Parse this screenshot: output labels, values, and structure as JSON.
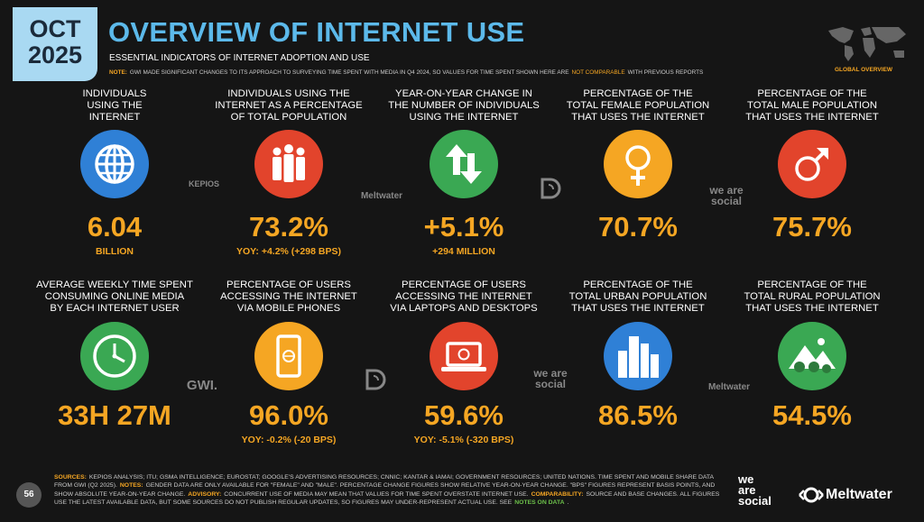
{
  "header": {
    "badge": [
      "OCT",
      "2025"
    ],
    "title": "OVERVIEW OF INTERNET USE",
    "subtitle": "ESSENTIAL INDICATORS OF INTERNET ADOPTION AND USE",
    "note": [
      "NOTE:",
      "GWI MADE SIGNIFICANT CHANGES TO ITS APPROACH TO SURVEYING TIME SPENT WITH MEDIA IN Q4 2024, SO VALUES FOR TIME SPENT SHOWN HERE ARE",
      "NOT COMPARABLE",
      "WITH PREVIOUS REPORTS"
    ],
    "map_label": "GLOBAL OVERVIEW"
  },
  "tiles": [
    {
      "label": [
        "INDIVIDUALS",
        "USING THE",
        "INTERNET"
      ],
      "value": "6.04",
      "detail": "BILLION",
      "color": "#2f80d6"
    },
    {
      "label": [
        "INDIVIDUALS USING THE",
        "INTERNET AS A PERCENTAGE",
        "OF TOTAL POPULATION"
      ],
      "value": "73.2%",
      "detail": "YOY: +4.2% (+298 BPS)",
      "color": "#e2442c"
    },
    {
      "label": [
        "YEAR-ON-YEAR CHANGE IN",
        "THE NUMBER OF INDIVIDUALS",
        "USING THE INTERNET"
      ],
      "value": "+5.1%",
      "detail": "+294 MILLION",
      "color": "#3aa853"
    },
    {
      "label": [
        "PERCENTAGE OF THE",
        "TOTAL FEMALE POPULATION",
        "THAT USES THE INTERNET"
      ],
      "value": "70.7%",
      "color": "#f5a623"
    },
    {
      "label": [
        "PERCENTAGE OF THE",
        "TOTAL MALE POPULATION",
        "THAT USES THE INTERNET"
      ],
      "value": "75.7%",
      "color": "#e2442c"
    },
    {
      "label": [
        "AVERAGE WEEKLY TIME SPENT",
        "CONSUMING ONLINE MEDIA",
        "BY EACH INTERNET USER"
      ],
      "value": "33H 27M",
      "color": "#3aa853"
    },
    {
      "label": [
        "PERCENTAGE OF USERS",
        "ACCESSING THE INTERNET",
        "VIA MOBILE PHONES"
      ],
      "value": "96.0%",
      "detail": "YOY: -0.2% (-20 BPS)",
      "color": "#f5a623"
    },
    {
      "label": [
        "PERCENTAGE OF USERS",
        "ACCESSING THE INTERNET",
        "VIA LAPTOPS AND DESKTOPS"
      ],
      "value": "59.6%",
      "detail": "YOY: -5.1% (-320 BPS)",
      "color": "#e2442c"
    },
    {
      "label": [
        "PERCENTAGE OF THE",
        "TOTAL URBAN POPULATION",
        "THAT USES THE INTERNET"
      ],
      "value": "86.5%",
      "color": "#2f80d6"
    },
    {
      "label": [
        "PERCENTAGE OF THE",
        "TOTAL RURAL POPULATION",
        "THAT USES THE INTERNET"
      ],
      "value": "54.5%",
      "color": "#3aa853"
    }
  ],
  "source_marks": [
    "KEPIOS",
    "Meltwater",
    "we are social",
    "GWI.",
    "we are social",
    "Meltwater"
  ],
  "footer": {
    "page": "56",
    "sources": [
      {
        "text": "SOURCES:",
        "color": "#f5a623"
      },
      {
        "text": "KEPIOS ANALYSIS; ITU; GSMA INTELLIGENCE; EUROSTAT; GOOGLE'S ADVERTISING RESOURCES; CNNIC; KANTAR & IAMAI; GOVERNMENT RESOURCES; UNITED NATIONS. TIME SPENT AND MOBILE SHARE DATA FROM GWI (Q2 2025)."
      },
      {
        "text": "NOTES:",
        "color": "#f5a623"
      },
      {
        "text": "GENDER DATA ARE ONLY AVAILABLE FOR \"FEMALE\" AND \"MALE\". PERCENTAGE CHANGE FIGURES SHOW RELATIVE YEAR-ON-YEAR CHANGE. \"BPS\" FIGURES REPRESENT BASIS POINTS, AND SHOW ABSOLUTE YEAR-ON-YEAR CHANGE."
      },
      {
        "text": "ADVISORY:",
        "color": "#f5a623"
      },
      {
        "text": "CONCURRENT USE OF MEDIA MAY MEAN THAT VALUES FOR TIME SPENT OVERSTATE INTERNET USE."
      },
      {
        "text": "COMPARABILITY:",
        "color": "#f5a623"
      },
      {
        "text": "SOURCE AND BASE CHANGES. ALL FIGURES USE THE LATEST AVAILABLE DATA, BUT SOME SOURCES DO NOT PUBLISH REGULAR UPDATES, SO FIGURES MAY UNDER-REPRESENT ACTUAL USE. SEE"
      },
      {
        "text": "NOTES ON DATA",
        "color": "#6cc04a"
      },
      {
        "text": "."
      }
    ],
    "brands": [
      [
        "we",
        "are",
        "social"
      ],
      "Meltwater"
    ]
  }
}
